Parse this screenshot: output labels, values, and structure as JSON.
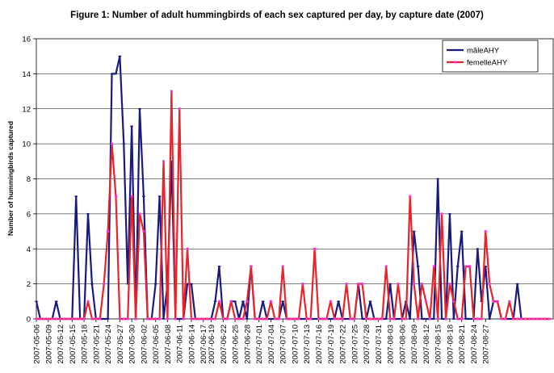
{
  "chart_data": {
    "type": "line",
    "title": "Figure 1: Number of adult hummingbirds of each sex captured per day, by capture date (2007)",
    "xlabel": "",
    "ylabel": "Number of hummingbirds captured",
    "ylim": [
      0,
      16
    ],
    "yticks": [
      0,
      2,
      4,
      6,
      8,
      10,
      12,
      14,
      16
    ],
    "grid": true,
    "legend_position": "top-right",
    "start_date": "2007-05-06",
    "end_date": "2007-08-29",
    "xtick_labels": [
      "2007-05-06",
      "2007-05-09",
      "2007-05-12",
      "2007-05-15",
      "2007-05-18",
      "2007-05-21",
      "2007-05-24",
      "2007-05-27",
      "2007-05-30",
      "2007-06-02",
      "2007-06-05",
      "2007-06-08",
      "2007-06-11",
      "2007-06-14",
      "2007-06-17",
      "2007-06-19",
      "2007-06-22",
      "2007-06-25",
      "2007-06-28",
      "2007-07-01",
      "2007-07-04",
      "2007-07-07",
      "2007-07-10",
      "2007-07-13",
      "2007-07-16",
      "2007-07-19",
      "2007-07-22",
      "2007-07-25",
      "2007-07-28",
      "2007-07-31",
      "2007-08-03",
      "2007-08-06",
      "2007-08-09",
      "2007-08-12",
      "2007-08-15",
      "2007-08-18",
      "2007-08-21",
      "2007-08-24",
      "2007-08-27"
    ],
    "series": [
      {
        "name": "mâleAHY",
        "color": "#1a1a7e",
        "values": [
          1,
          0,
          0,
          0,
          0,
          1,
          0,
          0,
          0,
          0,
          7,
          0,
          0,
          6,
          2,
          0,
          0,
          0,
          0,
          14,
          14,
          15,
          10,
          2,
          11,
          0,
          12,
          7,
          0,
          0,
          2,
          7,
          0,
          2,
          9,
          0,
          0,
          0,
          2,
          2,
          0,
          0,
          0,
          0,
          0,
          1,
          3,
          0,
          0,
          1,
          1,
          0,
          1,
          0,
          3,
          0,
          0,
          1,
          0,
          0,
          0,
          0,
          1,
          0,
          0,
          0,
          0,
          0,
          0,
          0,
          0,
          0,
          0,
          0,
          0,
          0,
          1,
          0,
          0,
          0,
          0,
          2,
          0,
          0,
          1,
          0,
          0,
          0,
          0,
          2,
          0,
          0,
          0,
          1,
          0,
          5,
          3,
          0,
          0,
          0,
          0,
          8,
          0,
          0,
          6,
          0,
          3,
          5,
          0,
          0,
          0,
          4,
          1,
          3,
          0,
          1,
          1,
          0,
          0,
          0,
          0,
          2,
          0,
          0,
          0,
          0,
          0,
          0,
          0,
          0
        ],
        "data_labels": []
      },
      {
        "name": "femelleAHY",
        "color": "#e8232a",
        "values": [
          0,
          0,
          0,
          0,
          0,
          0,
          0,
          0,
          0,
          0,
          0,
          0,
          0,
          1,
          0,
          0,
          0,
          2,
          5,
          10,
          7,
          0,
          0,
          0,
          7,
          0,
          6,
          5,
          0,
          0,
          0,
          0,
          9,
          0,
          13,
          0,
          12,
          0,
          4,
          0,
          0,
          0,
          0,
          0,
          0,
          0,
          1,
          0,
          0,
          1,
          0,
          0,
          0,
          1,
          3,
          0,
          0,
          0,
          0,
          1,
          0,
          0,
          3,
          0,
          0,
          0,
          0,
          2,
          0,
          0,
          4,
          0,
          0,
          0,
          1,
          0,
          0,
          0,
          2,
          0,
          0,
          2,
          2,
          0,
          0,
          0,
          0,
          0,
          3,
          0,
          0,
          2,
          0,
          0,
          7,
          2,
          0,
          2,
          1,
          0,
          3,
          0,
          6,
          0,
          2,
          1,
          0,
          0,
          3,
          3,
          0,
          0,
          0,
          5,
          2,
          1,
          1,
          0,
          0,
          1,
          0,
          0,
          0,
          0,
          0,
          0,
          0,
          0,
          0,
          0
        ]
      }
    ]
  }
}
